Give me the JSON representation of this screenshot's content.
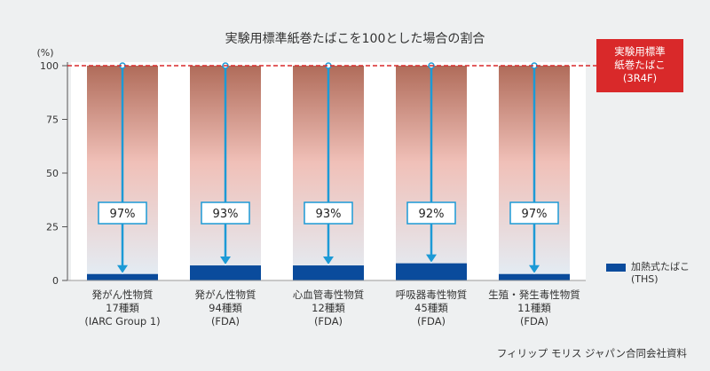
{
  "chart_data": {
    "type": "bar",
    "title": "実験用標準紙巻たばこを100とした場合の割合",
    "ylabel": "(%)",
    "ylim": [
      0,
      100
    ],
    "yticks": [
      0,
      25,
      50,
      75,
      100
    ],
    "reference": {
      "value": 100,
      "label_lines": [
        "実験用標準",
        "紙巻たばこ",
        "(3R4F)"
      ]
    },
    "categories": [
      {
        "lines": [
          "発がん性物質",
          "17種類",
          "(IARC Group 1)"
        ],
        "reduction_label": "97%"
      },
      {
        "lines": [
          "発がん性物質",
          "94種類",
          "(FDA)"
        ],
        "reduction_label": "93%"
      },
      {
        "lines": [
          "心血管毒性物質",
          "12種類",
          "(FDA)"
        ],
        "reduction_label": "93%"
      },
      {
        "lines": [
          "呼吸器毒性物質",
          "45種類",
          "(FDA)"
        ],
        "reduction_label": "92%"
      },
      {
        "lines": [
          "生殖・発生毒性物質",
          "11種類",
          "(FDA)"
        ],
        "reduction_label": "97%"
      }
    ],
    "series": [
      {
        "name": "加熱式たばこ (THS)",
        "values": [
          3,
          7,
          7,
          8,
          3
        ]
      }
    ],
    "legend": {
      "position": "bottom-right",
      "label_lines": [
        "加熱式たばこ",
        "(THS)"
      ]
    },
    "grid": false
  },
  "source": "フィリップ モリス ジャパン合同会社資料",
  "colors": {
    "background": "#eef0f1",
    "bar_top": "#b06c5a",
    "bar_mid": "#f0c0b8",
    "bar_low": "#e3eef6",
    "ths_bar": "#0a4b9c",
    "arrow": "#1c9ad6",
    "reference_line": "#d9292a",
    "reference_box": "#d9292a"
  }
}
